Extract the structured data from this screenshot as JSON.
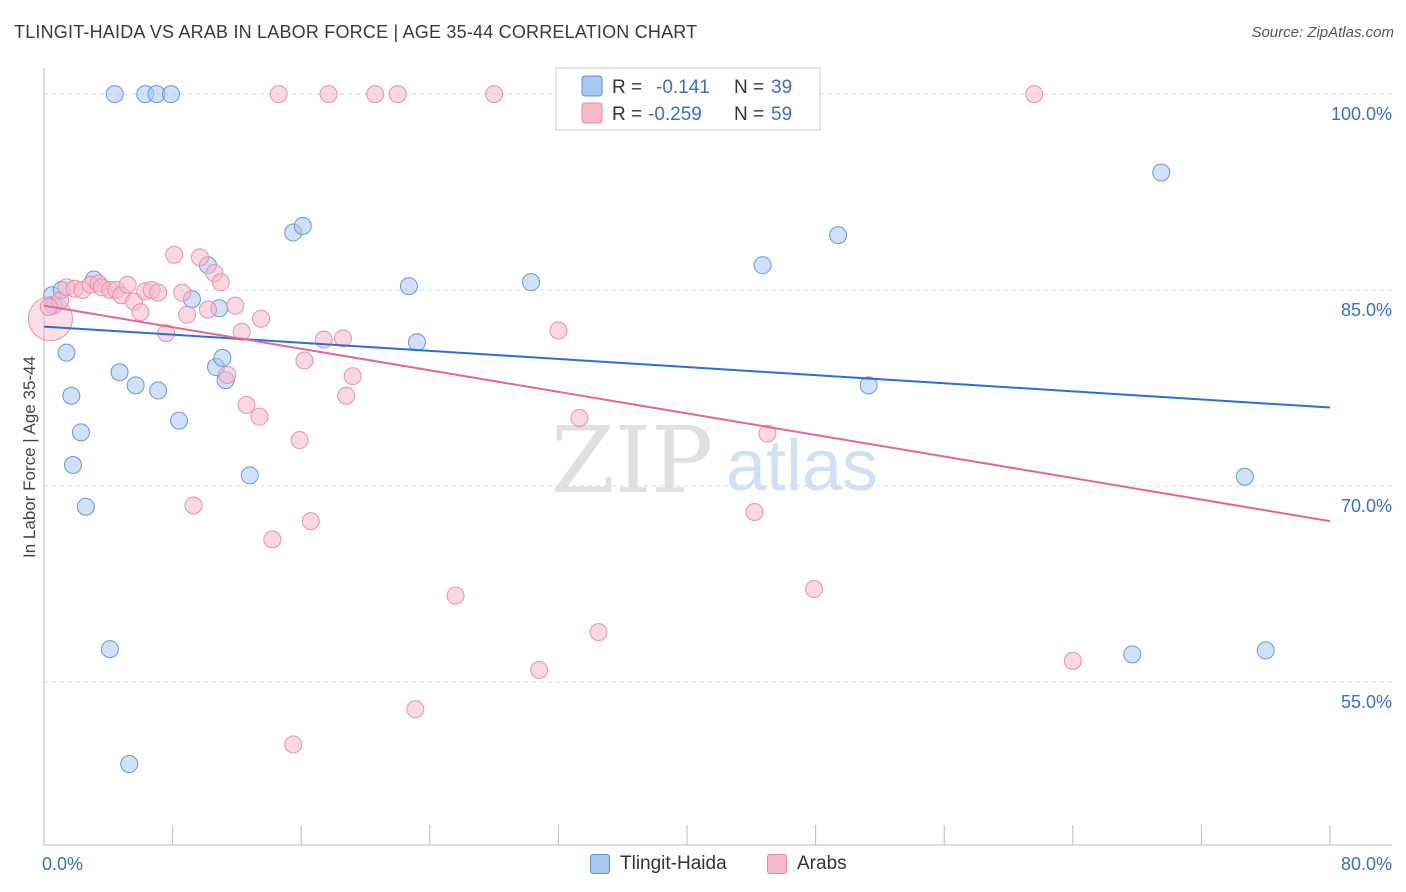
{
  "title": "TLINGIT-HAIDA VS ARAB IN LABOR FORCE | AGE 35-44 CORRELATION CHART",
  "source": "Source: ZipAtlas.com",
  "watermark": {
    "zip": "ZIP",
    "atlas": "atlas"
  },
  "colors": {
    "blue_fill": "#a9c8f0",
    "blue_stroke": "#5b8fd6",
    "blue_line": "#2f6fca",
    "pink_fill": "#f6b8cb",
    "pink_stroke": "#e78aa8",
    "pink_line": "#e0679a",
    "value_text": "#3b6fc6",
    "grid": "#dddddd",
    "axis": "#bbbbbb"
  },
  "legend_top": [
    {
      "r_label": "R =",
      "r_value": "-0.141",
      "n_label": "N =",
      "n_value": "39"
    },
    {
      "r_label": "R =",
      "r_value": "-0.259",
      "n_label": "N =",
      "n_value": "59"
    }
  ],
  "legend_bottom": [
    "Tlingit-Haida",
    "Arabs"
  ],
  "chart_data": {
    "type": "scatter",
    "title": "TLINGIT-HAIDA VS ARAB IN LABOR FORCE | AGE 35-44 CORRELATION CHART",
    "xlabel": "",
    "ylabel": "In Labor Force | Age 35-44",
    "xlim": [
      0,
      80
    ],
    "ylim": [
      42.5,
      102
    ],
    "x_tick_labels": [
      "0.0%",
      "80.0%"
    ],
    "y_ticks": [
      55,
      70,
      85,
      100
    ],
    "y_tick_labels": [
      "55.0%",
      "70.0%",
      "85.0%",
      "100.0%"
    ],
    "grid": true,
    "legend_placement": "top-center",
    "series": [
      {
        "name": "Tlingit-Haida",
        "r": -0.141,
        "n": 39,
        "trend": {
          "x": [
            0,
            80
          ],
          "y": [
            82.2,
            76.0
          ]
        },
        "points": [
          [
            0.5,
            84.6
          ],
          [
            0.6,
            83.8
          ],
          [
            1.1,
            85.0
          ],
          [
            1.4,
            80.2
          ],
          [
            1.7,
            76.9
          ],
          [
            1.8,
            71.6
          ],
          [
            2.3,
            74.1
          ],
          [
            2.6,
            68.4
          ],
          [
            3.1,
            85.8
          ],
          [
            4.1,
            57.5
          ],
          [
            4.4,
            100.0
          ],
          [
            4.7,
            78.7
          ],
          [
            5.3,
            48.7
          ],
          [
            5.7,
            77.7
          ],
          [
            6.3,
            100.0
          ],
          [
            7.0,
            100.0
          ],
          [
            7.1,
            77.3
          ],
          [
            7.9,
            100.0
          ],
          [
            8.4,
            75.0
          ],
          [
            9.2,
            84.3
          ],
          [
            10.2,
            86.9
          ],
          [
            10.7,
            79.1
          ],
          [
            10.9,
            83.6
          ],
          [
            11.1,
            79.8
          ],
          [
            11.3,
            78.1
          ],
          [
            12.8,
            70.8
          ],
          [
            15.5,
            89.4
          ],
          [
            16.1,
            89.9
          ],
          [
            22.7,
            85.3
          ],
          [
            23.2,
            81.0
          ],
          [
            30.3,
            85.6
          ],
          [
            37.0,
            100.0
          ],
          [
            44.7,
            86.9
          ],
          [
            49.4,
            89.2
          ],
          [
            51.3,
            77.7
          ],
          [
            69.5,
            94.0
          ],
          [
            67.7,
            57.1
          ],
          [
            74.7,
            70.7
          ],
          [
            76.0,
            57.4
          ]
        ]
      },
      {
        "name": "Arabs",
        "r": -0.259,
        "n": 59,
        "trend": {
          "x": [
            0,
            80
          ],
          "y": [
            83.8,
            67.3
          ]
        },
        "points": [
          [
            0.4,
            82.8
          ],
          [
            1.0,
            84.2
          ],
          [
            1.4,
            85.2
          ],
          [
            1.9,
            85.1
          ],
          [
            2.4,
            85.0
          ],
          [
            2.9,
            85.4
          ],
          [
            3.4,
            85.5
          ],
          [
            3.6,
            85.2
          ],
          [
            4.1,
            85.0
          ],
          [
            4.5,
            85.0
          ],
          [
            4.8,
            84.6
          ],
          [
            5.2,
            85.4
          ],
          [
            5.6,
            84.1
          ],
          [
            6.0,
            83.3
          ],
          [
            6.3,
            84.9
          ],
          [
            6.7,
            85.0
          ],
          [
            7.1,
            84.8
          ],
          [
            7.6,
            81.7
          ],
          [
            8.1,
            87.7
          ],
          [
            8.6,
            84.8
          ],
          [
            8.9,
            83.1
          ],
          [
            9.3,
            68.5
          ],
          [
            9.7,
            87.5
          ],
          [
            10.2,
            83.5
          ],
          [
            10.6,
            86.3
          ],
          [
            11.0,
            85.6
          ],
          [
            11.4,
            78.5
          ],
          [
            11.9,
            83.8
          ],
          [
            12.3,
            81.8
          ],
          [
            12.6,
            76.2
          ],
          [
            13.4,
            75.3
          ],
          [
            13.5,
            82.8
          ],
          [
            14.2,
            65.9
          ],
          [
            14.6,
            100.0
          ],
          [
            15.5,
            50.2
          ],
          [
            15.9,
            73.5
          ],
          [
            16.2,
            79.6
          ],
          [
            16.6,
            67.3
          ],
          [
            17.4,
            81.2
          ],
          [
            17.7,
            100.0
          ],
          [
            18.6,
            81.3
          ],
          [
            18.8,
            76.9
          ],
          [
            19.2,
            78.4
          ],
          [
            20.6,
            100.0
          ],
          [
            22.0,
            100.0
          ],
          [
            23.1,
            52.9
          ],
          [
            25.6,
            61.6
          ],
          [
            28.0,
            100.0
          ],
          [
            30.8,
            55.9
          ],
          [
            32.0,
            81.9
          ],
          [
            33.3,
            75.2
          ],
          [
            34.5,
            58.8
          ],
          [
            44.2,
            68.0
          ],
          [
            45.0,
            74.0
          ],
          [
            47.5,
            100.0
          ],
          [
            47.9,
            62.1
          ],
          [
            61.6,
            100.0
          ],
          [
            64.0,
            56.6
          ],
          [
            0.3,
            83.7
          ]
        ]
      }
    ]
  }
}
